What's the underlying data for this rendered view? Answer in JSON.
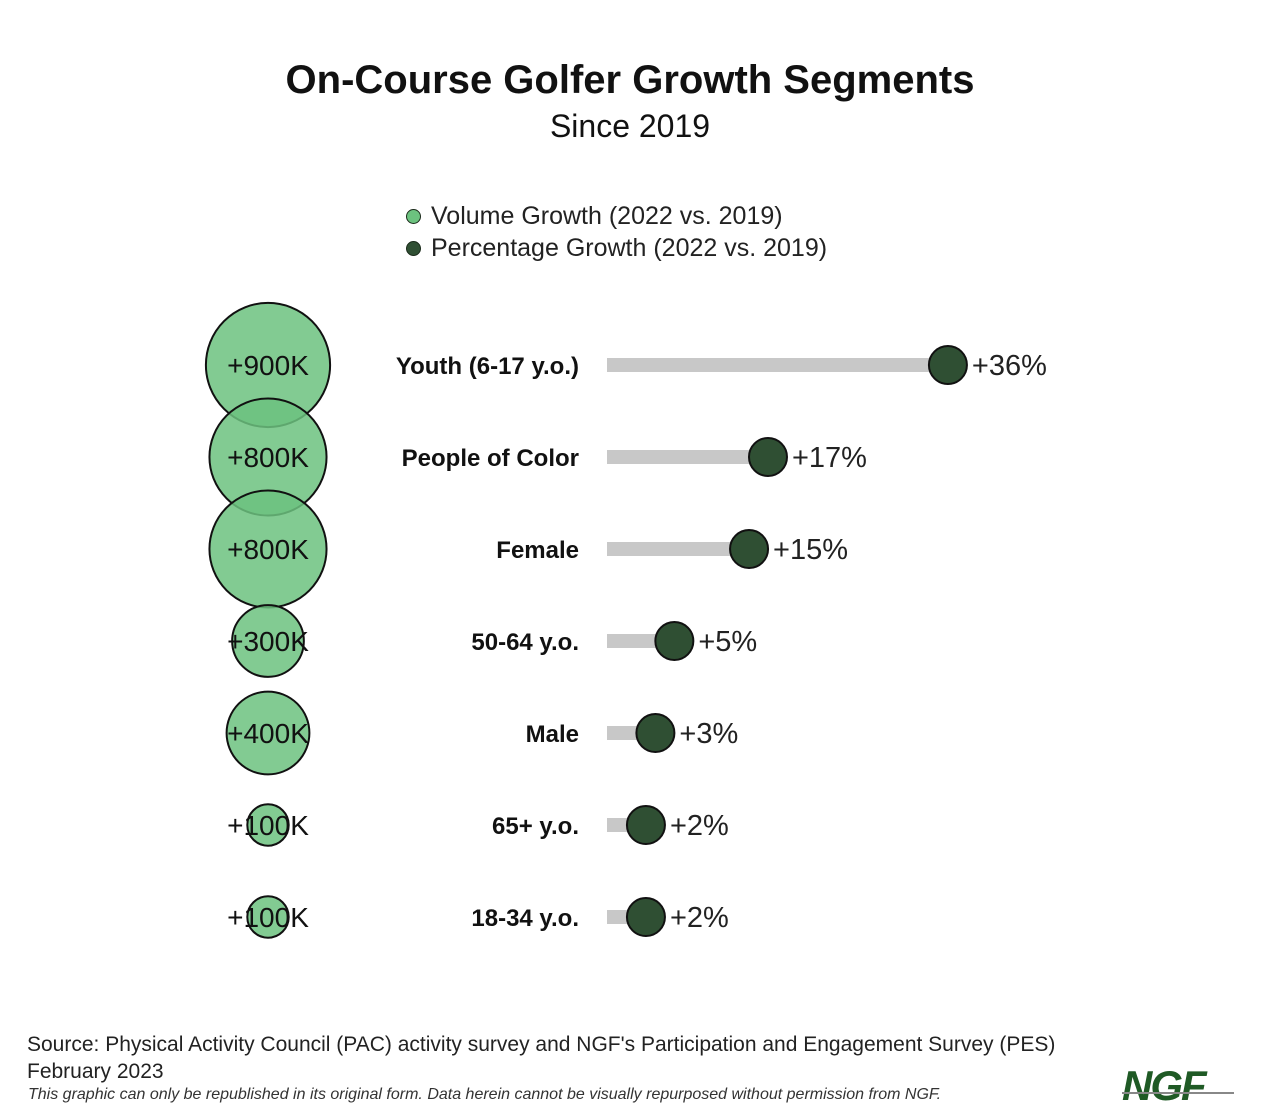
{
  "chart_data": {
    "type": "bubble-lollipop",
    "title": "On-Course Golfer Growth Segments",
    "subtitle": "Since 2019",
    "legend": [
      {
        "label": "Volume Growth (2022 vs. 2019)",
        "color": "#6cc27f"
      },
      {
        "label": "Percentage Growth (2022 vs. 2019)",
        "color": "#2f4f33"
      }
    ],
    "categories": [
      "Youth (6-17 y.o.)",
      "People of Color",
      "Female",
      "50-64 y.o.",
      "Male",
      "65+ y.o.",
      "18-34 y.o."
    ],
    "series": [
      {
        "name": "Volume Growth",
        "unit": "K",
        "values": [
          900,
          800,
          800,
          300,
          400,
          100,
          100
        ],
        "labels": [
          "+900K",
          "+800K",
          "+800K",
          "+300K",
          "+400K",
          "+100K",
          "+100K"
        ]
      },
      {
        "name": "Percentage Growth",
        "unit": "%",
        "values": [
          36,
          17,
          15,
          5,
          3,
          2,
          2
        ],
        "labels": [
          "+36%",
          "+17%",
          "+15%",
          "+5%",
          "+3%",
          "+2%",
          "+2%"
        ]
      }
    ],
    "colors": {
      "bubble": "#6cc27f",
      "dot": "#2f4f33",
      "bar": "#c8c8c8"
    }
  },
  "footer": {
    "source": "Source: Physical Activity Council (PAC) activity survey and NGF's Participation and Engagement Survey (PES)",
    "date": "February 2023",
    "note": "This graphic can only be republished in its original form. Data herein cannot be visually repurposed without permission from NGF.",
    "logo": "NGF"
  }
}
